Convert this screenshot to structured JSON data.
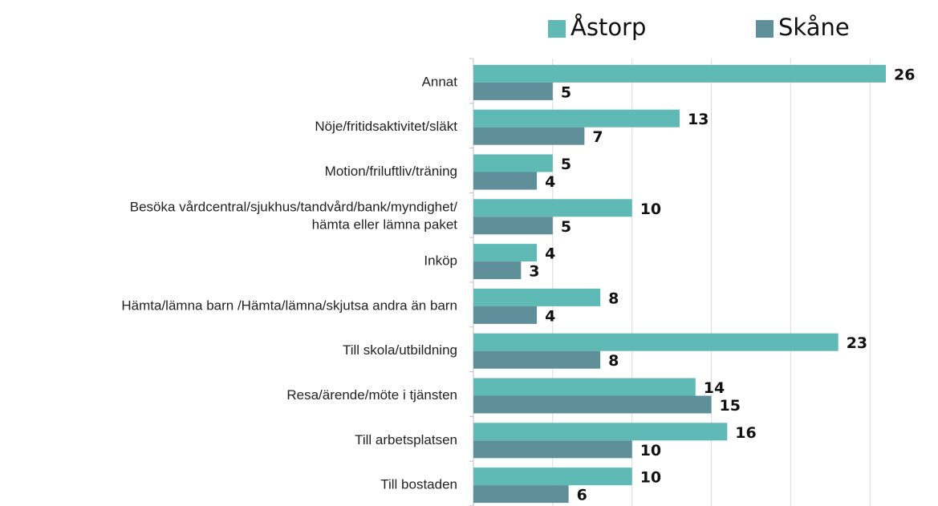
{
  "chart_data": {
    "type": "bar",
    "orientation": "horizontal",
    "categories": [
      "Annat",
      "Nöje/fritidsaktivitet/släkt",
      "Motion/friluftliv/träning",
      "Besöka vårdcentral/sjukhus/tandvård/bank/myndighet/\nhämta eller lämna paket",
      "Inköp",
      "Hämta/lämna barn /Hämta/lämna/skjutsa andra än barn",
      "Till skola/utbildning",
      "Resa/ärende/möte i tjänsten",
      "Till arbetsplatsen",
      "Till bostaden"
    ],
    "series": [
      {
        "name": "Åstorp",
        "color": "#5fb9b4",
        "values": [
          26,
          13,
          5,
          10,
          4,
          8,
          23,
          14,
          16,
          10
        ]
      },
      {
        "name": "Skåne",
        "color": "#5f9099",
        "values": [
          5,
          7,
          4,
          5,
          3,
          4,
          8,
          15,
          10,
          6
        ]
      }
    ],
    "xlim": [
      0,
      26
    ],
    "xticks": [
      0,
      5,
      10,
      15,
      20,
      25
    ],
    "grid": true,
    "legend": "top"
  }
}
